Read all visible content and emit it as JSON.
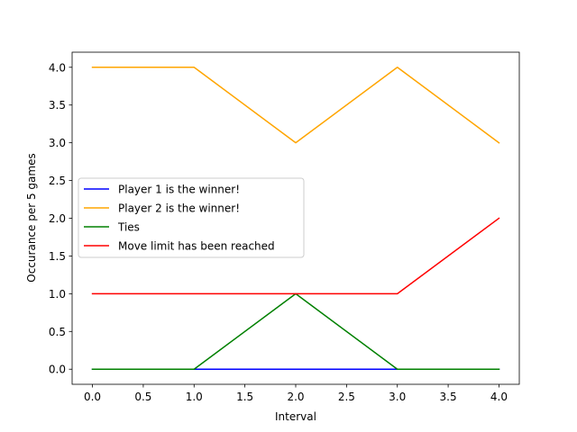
{
  "chart_data": {
    "type": "line",
    "title": "",
    "xlabel": "Interval",
    "ylabel": "Occurance per 5 games",
    "xlim": [
      -0.2,
      4.2
    ],
    "ylim": [
      -0.2,
      4.2
    ],
    "x_ticks": [
      "0.0",
      "0.5",
      "1.0",
      "1.5",
      "2.0",
      "2.5",
      "3.0",
      "3.5",
      "4.0"
    ],
    "y_ticks": [
      "0.0",
      "0.5",
      "1.0",
      "1.5",
      "2.0",
      "2.5",
      "3.0",
      "3.5",
      "4.0"
    ],
    "x": [
      0,
      1,
      2,
      3,
      4
    ],
    "series": [
      {
        "name": "Player 1 is the winner!",
        "color": "#0000ff",
        "values": [
          0,
          0,
          0,
          0,
          0
        ]
      },
      {
        "name": "Player 2 is the winner!",
        "color": "#ffa500",
        "values": [
          4,
          4,
          3,
          4,
          3
        ]
      },
      {
        "name": "Ties",
        "color": "#008000",
        "values": [
          0,
          0,
          1,
          0,
          0
        ]
      },
      {
        "name": "Move limit has been reached",
        "color": "#ff0000",
        "values": [
          1,
          1,
          1,
          1,
          2
        ]
      }
    ],
    "legend_position": "center-left",
    "grid": false
  }
}
